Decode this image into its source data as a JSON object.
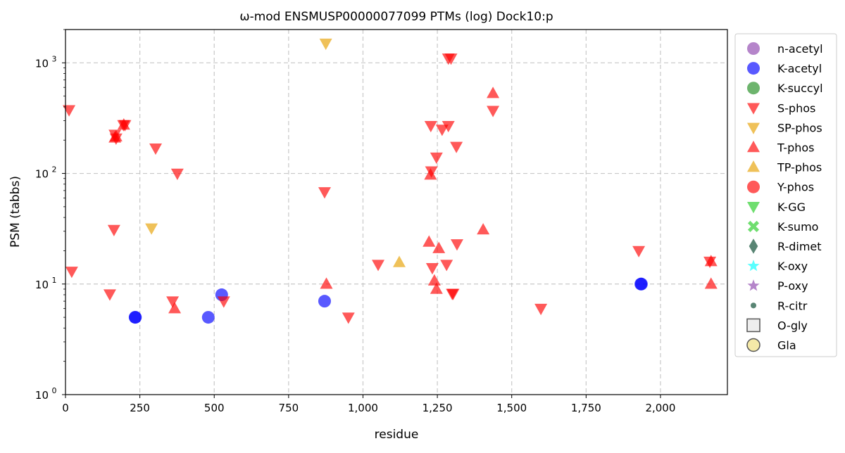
{
  "chart_data": {
    "type": "scatter",
    "title": "ω-mod ENSMUSP00000077099 PTMs (log) Dock10:p",
    "xlabel": "residue",
    "ylabel": "PSM (tabbs)",
    "xlim": [
      0,
      2225
    ],
    "ylim": [
      1,
      2000
    ],
    "yscale": "log",
    "grid": true,
    "legend_position": "outside-right",
    "xticks": [
      0,
      250,
      500,
      750,
      1000,
      1250,
      1500,
      1750,
      2000
    ],
    "xtick_labels": [
      "0",
      "250",
      "500",
      "750",
      "1,000",
      "1,250",
      "1,500",
      "1,750",
      "2,000"
    ],
    "yticks": [
      1,
      10,
      100,
      1000
    ],
    "ytick_labels": [
      [
        "10",
        "0"
      ],
      [
        "10",
        "1"
      ],
      [
        "10",
        "2"
      ],
      [
        "10",
        "3"
      ]
    ],
    "series": [
      {
        "name": "n-acetyl",
        "marker": "circle",
        "color": "#8e44ad",
        "points": []
      },
      {
        "name": "K-acetyl",
        "marker": "circle",
        "color": "#0000ff",
        "points": [
          [
            234,
            5
          ],
          [
            235,
            5
          ],
          [
            480,
            5
          ],
          [
            525,
            8
          ],
          [
            871,
            7
          ],
          [
            1934,
            10
          ],
          [
            1936,
            10
          ]
        ]
      },
      {
        "name": "K-succyl",
        "marker": "circle",
        "color": "#1e8c1e",
        "points": []
      },
      {
        "name": "S-phos",
        "marker": "triangle-down",
        "color": "#ff0000",
        "points": [
          [
            12,
            375
          ],
          [
            166,
            225
          ],
          [
            170,
            208
          ],
          [
            195,
            275
          ],
          [
            200,
            275
          ],
          [
            303,
            169
          ],
          [
            376,
            100
          ],
          [
            163,
            31
          ],
          [
            21,
            13
          ],
          [
            149,
            8.1
          ],
          [
            360,
            7
          ],
          [
            532,
            7
          ],
          [
            871,
            68
          ],
          [
            951,
            5
          ],
          [
            1051,
            15
          ],
          [
            1228,
            270
          ],
          [
            1266,
            250
          ],
          [
            1287,
            270
          ],
          [
            1247,
            140
          ],
          [
            1314,
            175
          ],
          [
            1230,
            105
          ],
          [
            1233,
            14
          ],
          [
            1281,
            15
          ],
          [
            1300,
            8.2
          ],
          [
            1303,
            8.2
          ],
          [
            1316,
            23
          ],
          [
            1437,
            370
          ],
          [
            1287,
            1100
          ],
          [
            1296,
            1100
          ],
          [
            1598,
            6
          ],
          [
            1927,
            20
          ],
          [
            2166,
            16
          ]
        ]
      },
      {
        "name": "SP-phos",
        "marker": "triangle-down",
        "color": "#e69f00",
        "points": [
          [
            875,
            1500
          ],
          [
            289,
            32
          ]
        ]
      },
      {
        "name": "T-phos",
        "marker": "triangle-up",
        "color": "#ff0000",
        "points": [
          [
            166,
            210
          ],
          [
            170,
            215
          ],
          [
            196,
            275
          ],
          [
            367,
            6
          ],
          [
            877,
            10
          ],
          [
            1227,
            97
          ],
          [
            1222,
            24
          ],
          [
            1255,
            21
          ],
          [
            1240,
            10.7
          ],
          [
            1247,
            9
          ],
          [
            1404,
            31
          ],
          [
            1437,
            530
          ],
          [
            2170,
            16
          ],
          [
            2170,
            10
          ]
        ]
      },
      {
        "name": "TP-phos",
        "marker": "triangle-up",
        "color": "#e69f00",
        "points": [
          [
            1122,
            15.7
          ]
        ]
      },
      {
        "name": "Y-phos",
        "marker": "circle",
        "color": "#ff0000",
        "points": []
      },
      {
        "name": "K-GG",
        "marker": "triangle-down",
        "color": "#22cc22",
        "points": []
      },
      {
        "name": "K-sumo",
        "marker": "x",
        "color": "#22cc22",
        "points": []
      },
      {
        "name": "R-dimet",
        "marker": "diamond",
        "color": "#00442a",
        "points": []
      },
      {
        "name": "K-oxy",
        "marker": "star",
        "color": "#00ffff",
        "points": []
      },
      {
        "name": "P-oxy",
        "marker": "star",
        "color": "#8e44ad",
        "points": []
      },
      {
        "name": "R-citr",
        "marker": "small-circle",
        "color": "#00442a",
        "points": []
      },
      {
        "name": "O-gly",
        "marker": "square",
        "color": "#eeeeee",
        "points": []
      },
      {
        "name": "Gla",
        "marker": "circle-outline",
        "color": "#f5e9a8",
        "points": []
      }
    ]
  }
}
